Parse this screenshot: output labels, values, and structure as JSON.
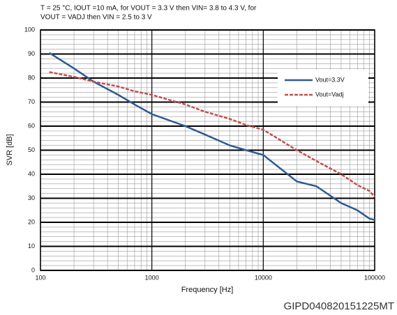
{
  "chart_data": {
    "type": "line",
    "title": [
      "T = 25 °C, IOUT =10 mA, for VOUT = 3.3 V then VIN= 3.8 to 4.3 V, for",
      "VOUT = VADJ then VIN = 2.5 to 3 V"
    ],
    "xlabel": "Frequency [Hz]",
    "ylabel": "SVR [dB]",
    "footer": "GIPD040820151225MT",
    "x": [
      120,
      200,
      300,
      500,
      700,
      1000,
      2000,
      3000,
      5000,
      7000,
      10000,
      20000,
      30000,
      50000,
      70000,
      90000,
      100000
    ],
    "series": [
      {
        "name": "Vout=3.3V",
        "color": "#2e5a92",
        "dashed": false,
        "values": [
          90.5,
          84,
          78.5,
          73,
          69,
          65,
          60,
          56.5,
          52,
          50,
          48,
          37,
          35,
          28,
          25,
          21.5,
          21
        ]
      },
      {
        "name": "Vout=Vadj",
        "color": "#c0504d",
        "dashed": true,
        "values": [
          82.5,
          80.5,
          78.5,
          76.5,
          74.5,
          73,
          69,
          66,
          63,
          60.5,
          58.5,
          50,
          45.5,
          40,
          35.5,
          33,
          30.5
        ]
      }
    ],
    "xlim": [
      100,
      100000
    ],
    "xticks": [
      100,
      1000,
      10000,
      100000
    ],
    "xscale": "log",
    "ylim": [
      0,
      100
    ],
    "yticks": [
      0,
      10,
      20,
      30,
      40,
      50,
      60,
      70,
      80,
      90,
      100
    ],
    "grid": true,
    "legend_position": "upper right"
  }
}
